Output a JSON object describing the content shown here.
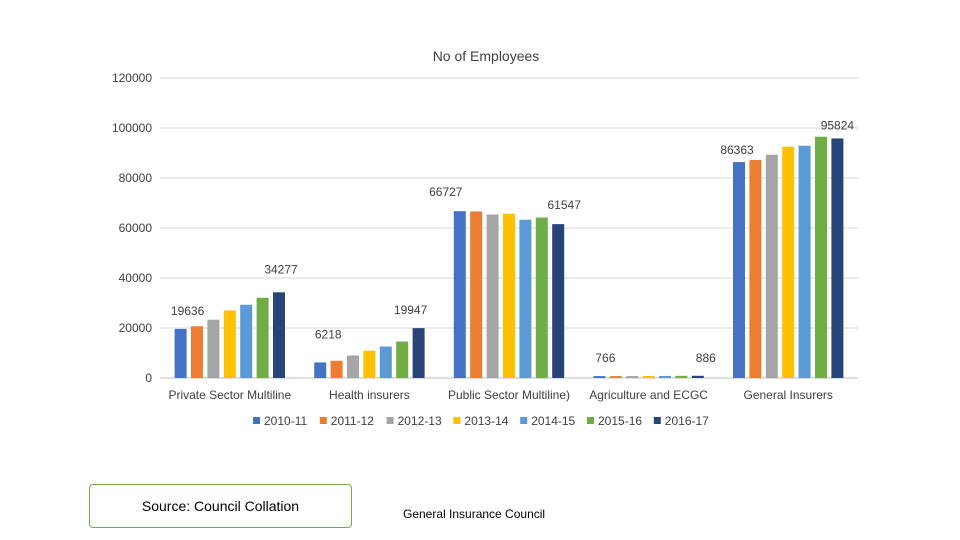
{
  "chart_data": {
    "type": "bar",
    "title": "No of Employees",
    "xlabel": "",
    "ylabel": "",
    "ylim": [
      0,
      120000
    ],
    "yticks": [
      0,
      20000,
      40000,
      60000,
      80000,
      100000,
      120000
    ],
    "grid": true,
    "legend_position": "bottom",
    "categories": [
      "Private  Sector Multiline",
      "Health insurers",
      "Public Sector Multiline)",
      "Agriculture and ECGC",
      "General Insurers"
    ],
    "series": [
      {
        "name": "2010-11",
        "color": "#4472c4",
        "values": [
          19636,
          6218,
          66727,
          766,
          86363
        ]
      },
      {
        "name": "2011-12",
        "color": "#ed7d31",
        "values": [
          20700,
          6900,
          66600,
          770,
          87200
        ]
      },
      {
        "name": "2012-13",
        "color": "#a5a5a5",
        "values": [
          23300,
          9000,
          65400,
          780,
          89300
        ]
      },
      {
        "name": "2013-14",
        "color": "#ffc000",
        "values": [
          27000,
          10900,
          65700,
          800,
          92500
        ]
      },
      {
        "name": "2014-15",
        "color": "#5b9bd5",
        "values": [
          29300,
          12600,
          63300,
          820,
          92900
        ]
      },
      {
        "name": "2015-16",
        "color": "#70ad47",
        "values": [
          32100,
          14600,
          64200,
          850,
          96500
        ]
      },
      {
        "name": "2016-17",
        "color": "#264478",
        "values": [
          34277,
          19947,
          61547,
          886,
          95824
        ]
      }
    ],
    "data_labels": [
      {
        "category": 0,
        "series": 0,
        "text": "19636"
      },
      {
        "category": 0,
        "series": 6,
        "text": "34277"
      },
      {
        "category": 1,
        "series": 0,
        "text": "6218"
      },
      {
        "category": 1,
        "series": 6,
        "text": "19947"
      },
      {
        "category": 2,
        "series": 0,
        "text": "66727"
      },
      {
        "category": 2,
        "series": 6,
        "text": "61547"
      },
      {
        "category": 3,
        "series": 0,
        "text": "766"
      },
      {
        "category": 3,
        "series": 6,
        "text": "886"
      },
      {
        "category": 4,
        "series": 0,
        "text": "86363"
      },
      {
        "category": 4,
        "series": 6,
        "text": "95824"
      }
    ]
  },
  "source_box": {
    "text": "Source: Council Collation"
  },
  "footer": {
    "text": "General Insurance Council"
  }
}
